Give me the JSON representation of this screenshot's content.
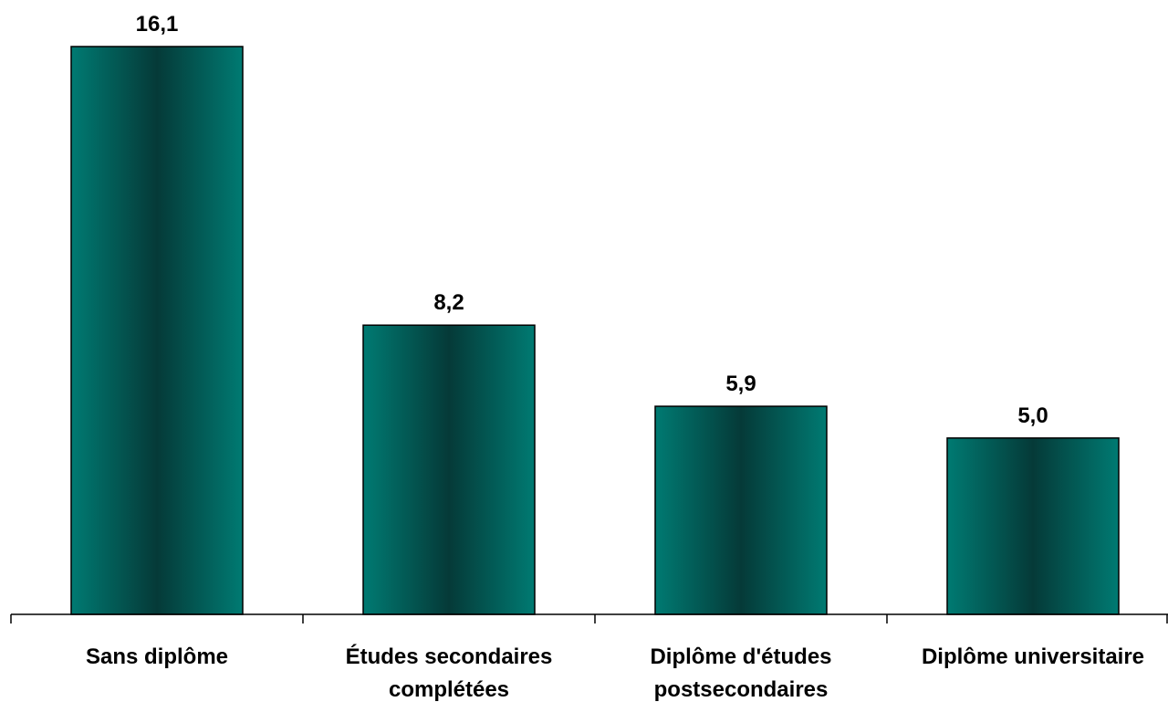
{
  "chart_data": {
    "type": "bar",
    "categories": [
      [
        "Sans diplôme"
      ],
      [
        "Études secondaires",
        "complétées"
      ],
      [
        "Diplôme d'études",
        "postsecondaires"
      ],
      [
        "Diplôme universitaire"
      ]
    ],
    "values": [
      16.1,
      8.2,
      5.9,
      5.0
    ],
    "data_labels": [
      "16,1",
      "8,2",
      "5,9",
      "5,0"
    ],
    "title": "",
    "xlabel": "",
    "ylabel": "",
    "ylim": [
      0,
      17.5
    ],
    "grid": false,
    "legend": "none",
    "colors": {
      "bar_edge": "#007a72",
      "bar_center": "#053a38",
      "bar_outline": "#000000",
      "axis": "#000000"
    }
  }
}
